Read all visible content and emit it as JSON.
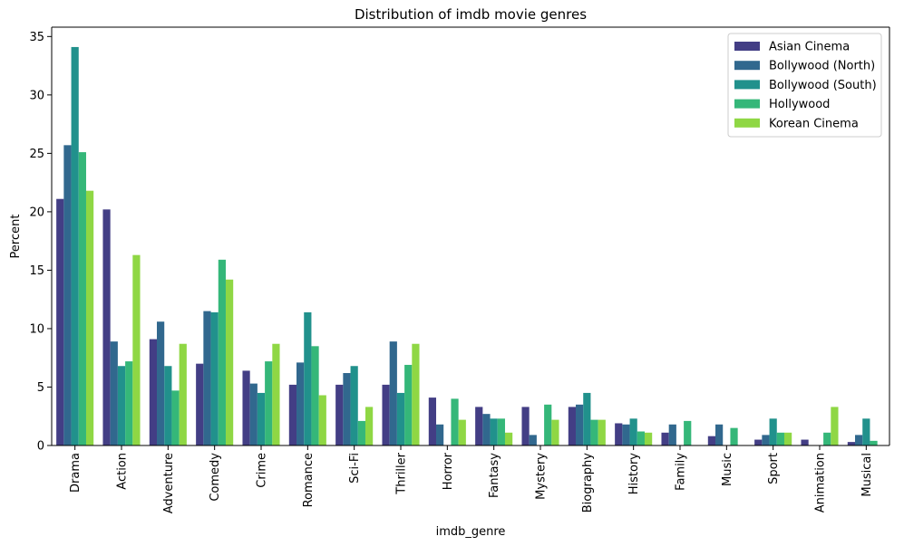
{
  "chart_data": {
    "type": "bar",
    "title": "Distribution of imdb movie genres",
    "xlabel": "imdb_genre",
    "ylabel": "Percent",
    "ylim": [
      0,
      35.8
    ],
    "yticks": [
      0,
      5,
      10,
      15,
      20,
      25,
      30,
      35
    ],
    "grid": false,
    "legend_position": "top-right",
    "categories": [
      "Drama",
      "Action",
      "Adventure",
      "Comedy",
      "Crime",
      "Romance",
      "Sci-Fi",
      "Thriller",
      "Horror",
      "Fantasy",
      "Mystery",
      "Biography",
      "History",
      "Family",
      "Music",
      "Sport",
      "Animation",
      "Musical"
    ],
    "series": [
      {
        "name": "Asian Cinema",
        "color": "#433e85",
        "values": [
          21.1,
          20.2,
          9.1,
          7.0,
          6.4,
          5.2,
          5.2,
          5.2,
          4.1,
          3.3,
          3.3,
          3.3,
          1.9,
          1.1,
          0.8,
          0.5,
          0.5,
          0.3
        ]
      },
      {
        "name": "Bollywood (North)",
        "color": "#31688e",
        "values": [
          25.7,
          8.9,
          10.6,
          11.5,
          5.3,
          7.1,
          6.2,
          8.9,
          1.8,
          2.7,
          0.9,
          3.5,
          1.8,
          1.8,
          1.8,
          0.9,
          0.0,
          0.9
        ]
      },
      {
        "name": "Bollywood (South)",
        "color": "#21918c",
        "values": [
          34.1,
          6.8,
          6.8,
          11.4,
          4.5,
          11.4,
          6.8,
          4.5,
          0.0,
          2.3,
          0.0,
          4.5,
          2.3,
          0.0,
          0.0,
          2.3,
          0.0,
          2.3
        ]
      },
      {
        "name": "Hollywood",
        "color": "#35b779",
        "values": [
          25.1,
          7.2,
          4.7,
          15.9,
          7.2,
          8.5,
          2.1,
          6.9,
          4.0,
          2.3,
          3.5,
          2.2,
          1.2,
          2.1,
          1.5,
          1.1,
          1.1,
          0.4
        ]
      },
      {
        "name": "Korean Cinema",
        "color": "#8fd744",
        "values": [
          21.8,
          16.3,
          8.7,
          14.2,
          8.7,
          4.3,
          3.3,
          8.7,
          2.2,
          1.1,
          2.2,
          2.2,
          1.1,
          0.0,
          0.0,
          1.1,
          3.3,
          0.0
        ]
      }
    ]
  }
}
